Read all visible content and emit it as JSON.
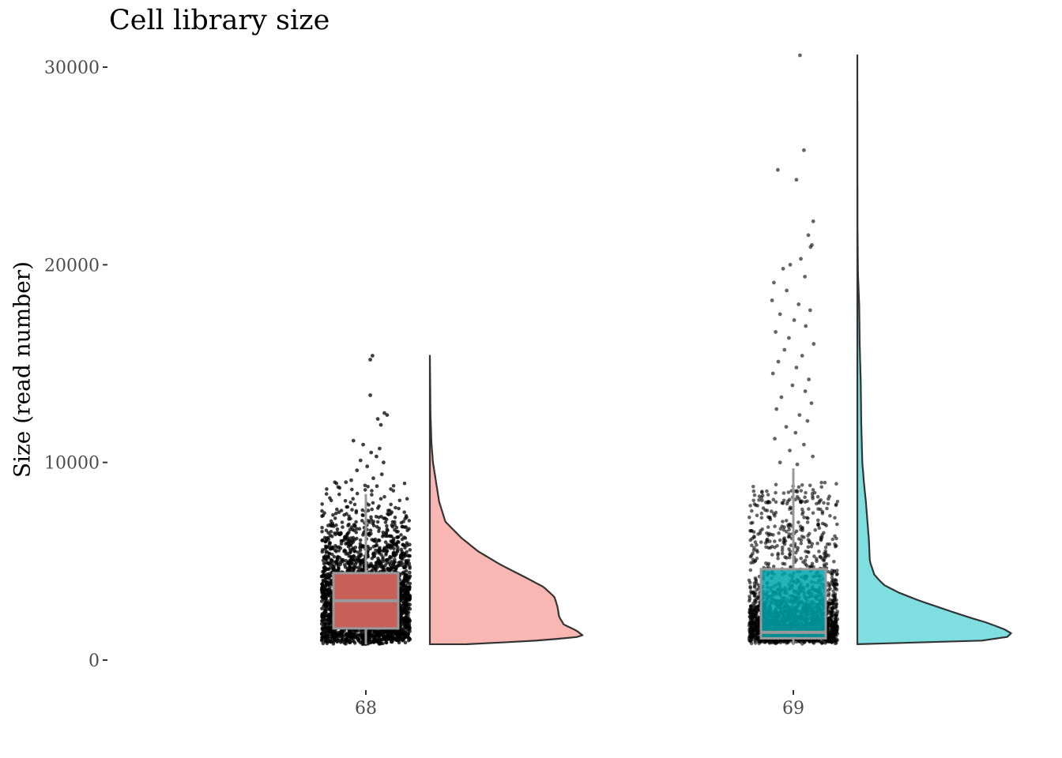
{
  "chart_data": {
    "type": "raincloud",
    "title": "Cell library size",
    "ylabel": "Size (read number)",
    "xlabel": "",
    "ylim": [
      -1200,
      31000
    ],
    "yticks": [
      0,
      10000,
      20000,
      30000
    ],
    "legend": "none",
    "grid": false,
    "groups": [
      {
        "category": "68",
        "color": "#f8b7b3",
        "box_color": "#c8605a",
        "box": {
          "whisker_low": 800,
          "q1": 1600,
          "median": 3000,
          "q3": 4400,
          "whisker_high": 8400
        },
        "min": 800,
        "max": 15400,
        "density_profile": [
          [
            800,
            0.24
          ],
          [
            1000,
            0.72
          ],
          [
            1200,
            0.99
          ],
          [
            1500,
            0.94
          ],
          [
            1800,
            0.86
          ],
          [
            2200,
            0.83
          ],
          [
            2700,
            0.82
          ],
          [
            3200,
            0.8
          ],
          [
            3700,
            0.73
          ],
          [
            4200,
            0.61
          ],
          [
            4800,
            0.46
          ],
          [
            5500,
            0.31
          ],
          [
            6200,
            0.2
          ],
          [
            7000,
            0.1
          ],
          [
            8000,
            0.06
          ],
          [
            9000,
            0.04
          ],
          [
            10000,
            0.02
          ],
          [
            11000,
            0.01
          ],
          [
            12500,
            0.004
          ],
          [
            14000,
            0.002
          ],
          [
            15400,
            0.0
          ]
        ],
        "outliers": [
          [
            15400,
            0.15
          ],
          [
            15200,
            0.1
          ],
          [
            13400,
            0.1
          ],
          [
            12500,
            0.42
          ],
          [
            12400,
            0.48
          ],
          [
            12200,
            0.27
          ],
          [
            11900,
            0.34
          ],
          [
            11100,
            -0.28
          ],
          [
            10900,
            -0.06
          ],
          [
            10700,
            0.31
          ],
          [
            10500,
            0.12
          ],
          [
            10300,
            0.24
          ],
          [
            10100,
            -0.12
          ],
          [
            10000,
            0.4
          ],
          [
            9800,
            0.03
          ],
          [
            9600,
            -0.2
          ],
          [
            9400,
            0.36
          ],
          [
            9200,
            0.17
          ],
          [
            9100,
            -0.33
          ],
          [
            9000,
            -0.45
          ],
          [
            8800,
            0.25
          ]
        ]
      },
      {
        "category": "69",
        "color": "#7fdfe0",
        "box_color": "#00a4ad",
        "box": {
          "whisker_low": 800,
          "q1": 1100,
          "median": 1400,
          "q3": 4600,
          "whisker_high": 9700
        },
        "min": 800,
        "max": 30600,
        "density_profile": [
          [
            800,
            0.0
          ],
          [
            1000,
            0.86
          ],
          [
            1200,
            0.98
          ],
          [
            1400,
            0.99
          ],
          [
            1600,
            0.93
          ],
          [
            1900,
            0.83
          ],
          [
            2200,
            0.7
          ],
          [
            2600,
            0.55
          ],
          [
            3000,
            0.4
          ],
          [
            3400,
            0.27
          ],
          [
            3800,
            0.17
          ],
          [
            4300,
            0.11
          ],
          [
            5000,
            0.08
          ],
          [
            6000,
            0.075
          ],
          [
            7000,
            0.065
          ],
          [
            8000,
            0.055
          ],
          [
            9000,
            0.042
          ],
          [
            10000,
            0.032
          ],
          [
            12000,
            0.025
          ],
          [
            14000,
            0.022
          ],
          [
            16000,
            0.015
          ],
          [
            18000,
            0.012
          ],
          [
            19500,
            0.004
          ],
          [
            22000,
            0.001
          ],
          [
            26000,
            0.0005
          ],
          [
            30600,
            0.0
          ]
        ],
        "outliers": [
          [
            30600,
            0.15
          ],
          [
            25800,
            0.24
          ],
          [
            24800,
            -0.35
          ],
          [
            24300,
            0.07
          ],
          [
            22200,
            0.45
          ],
          [
            21500,
            0.34
          ],
          [
            21000,
            0.42
          ],
          [
            20900,
            0.39
          ],
          [
            20300,
            0.17
          ],
          [
            20000,
            -0.07
          ],
          [
            19800,
            -0.23
          ],
          [
            19400,
            0.26
          ],
          [
            19100,
            -0.44
          ],
          [
            18700,
            -0.15
          ],
          [
            18200,
            -0.48
          ],
          [
            18000,
            0.12
          ],
          [
            17700,
            0.38
          ],
          [
            17500,
            -0.3
          ],
          [
            17200,
            0.02
          ],
          [
            16900,
            0.28
          ],
          [
            16600,
            -0.4
          ],
          [
            16300,
            -0.1
          ],
          [
            16000,
            0.46
          ],
          [
            15700,
            -0.2
          ],
          [
            15400,
            0.2
          ],
          [
            15100,
            -0.34
          ],
          [
            14800,
            0.07
          ],
          [
            14500,
            -0.46
          ],
          [
            14200,
            0.35
          ],
          [
            13900,
            -0.02
          ],
          [
            13600,
            0.27
          ],
          [
            13300,
            -0.27
          ],
          [
            13000,
            0.41
          ],
          [
            12700,
            -0.38
          ],
          [
            12400,
            0.14
          ],
          [
            12100,
            0.32
          ],
          [
            11800,
            -0.16
          ],
          [
            11500,
            0.05
          ],
          [
            11200,
            -0.42
          ],
          [
            10900,
            0.24
          ],
          [
            10600,
            -0.08
          ],
          [
            10300,
            0.44
          ],
          [
            10000,
            -0.3
          ],
          [
            9900,
            0.09
          ]
        ]
      }
    ]
  }
}
